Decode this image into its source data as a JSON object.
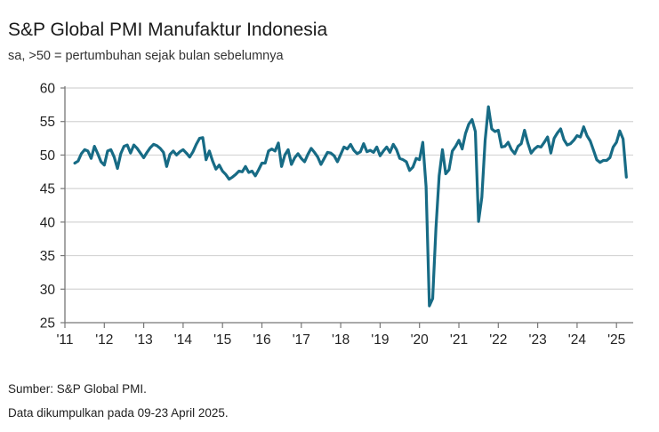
{
  "chart_data": {
    "type": "line",
    "title": "S&P Global PMI Manufaktur Indonesia",
    "subtitle": "sa, >50 = pertumbuhan sejak bulan sebelumnya",
    "xlabel": "",
    "ylabel": "",
    "ylim": [
      25,
      60
    ],
    "yticks": [
      25,
      30,
      35,
      40,
      45,
      50,
      55,
      60
    ],
    "xticks": [
      "'11",
      "'12",
      "'13",
      "'14",
      "'15",
      "'16",
      "'17",
      "'18",
      "'19",
      "'20",
      "'21",
      "'22",
      "'23",
      "'24",
      "'25"
    ],
    "x_range": [
      "2011-01",
      "2025-04"
    ],
    "grid": "horizontal",
    "color": "#176b85",
    "series": [
      {
        "name": "PMI Manufaktur Indonesia",
        "start": "2011-04",
        "frequency": "monthly",
        "values": [
          48.8,
          49.1,
          50.2,
          50.8,
          50.6,
          49.5,
          51.3,
          50.2,
          49.0,
          48.5,
          50.6,
          50.8,
          49.7,
          48.0,
          50.2,
          51.3,
          51.5,
          50.3,
          51.5,
          51.0,
          50.3,
          49.6,
          50.4,
          51.1,
          51.6,
          51.4,
          51.0,
          50.4,
          48.3,
          50.1,
          50.6,
          50.0,
          50.5,
          50.8,
          50.3,
          49.7,
          50.5,
          51.6,
          52.5,
          52.6,
          49.3,
          50.6,
          49.1,
          47.9,
          48.5,
          47.6,
          47.1,
          46.4,
          46.7,
          47.1,
          47.6,
          47.5,
          48.3,
          47.4,
          47.6,
          46.9,
          47.8,
          48.8,
          48.8,
          50.6,
          50.9,
          50.6,
          51.8,
          48.3,
          50.0,
          50.8,
          48.6,
          49.6,
          50.2,
          49.5,
          49.0,
          50.1,
          51.0,
          50.4,
          49.7,
          48.6,
          49.5,
          50.4,
          50.3,
          49.9,
          49.0,
          50.1,
          51.2,
          50.9,
          51.6,
          50.7,
          50.2,
          50.5,
          51.7,
          50.5,
          50.7,
          50.4,
          51.2,
          49.9,
          50.6,
          51.2,
          50.4,
          51.6,
          50.8,
          49.5,
          49.3,
          49.0,
          47.7,
          48.2,
          49.5,
          49.3,
          51.9,
          45.3,
          27.5,
          28.6,
          39.1,
          46.9,
          50.8,
          47.2,
          47.8,
          50.6,
          51.3,
          52.2,
          50.9,
          53.2,
          54.6,
          55.3,
          53.5,
          40.1,
          43.7,
          52.2,
          57.2,
          53.9,
          53.5,
          53.7,
          51.2,
          51.3,
          51.9,
          50.8,
          50.2,
          51.3,
          51.7,
          53.7,
          51.8,
          50.3,
          50.9,
          51.3,
          51.2,
          51.9,
          52.7,
          50.3,
          52.5,
          53.3,
          53.9,
          52.3,
          51.5,
          51.7,
          52.2,
          52.9,
          52.7,
          54.2,
          52.9,
          52.1,
          50.7,
          49.3,
          48.9,
          49.2,
          49.2,
          49.6,
          51.2,
          51.9,
          53.6,
          52.4,
          46.7
        ]
      }
    ]
  },
  "footer": {
    "source": "Sumber: S&P Global PMI.",
    "note": "Data dikumpulkan pada 09-23 April 2025."
  }
}
